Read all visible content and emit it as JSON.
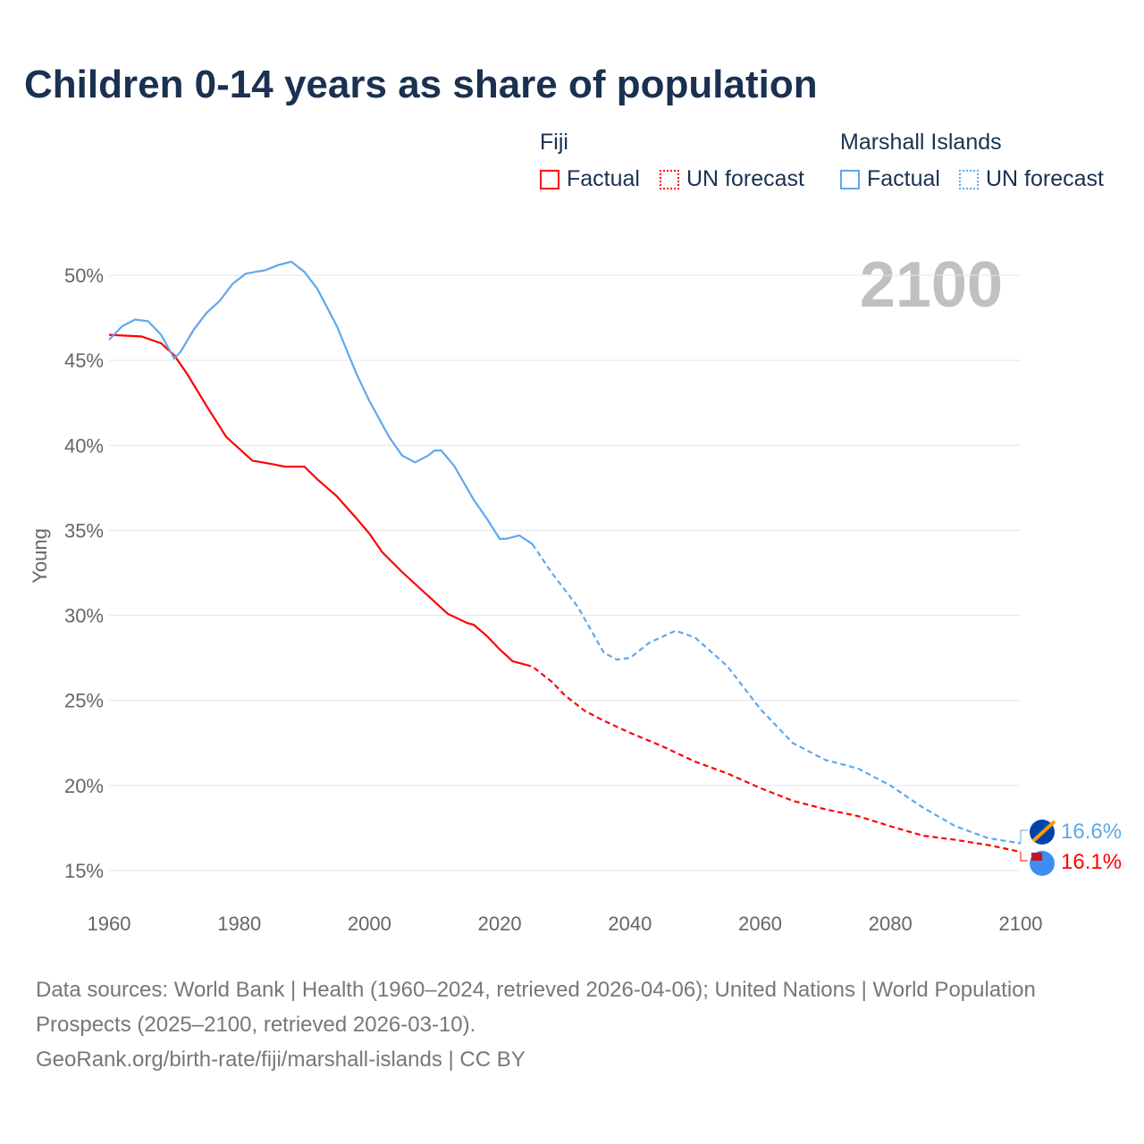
{
  "title": "Children 0-14 years as share of population",
  "legend": {
    "groups": [
      {
        "name": "Fiji",
        "color": "#ff0000",
        "factual": "Factual",
        "forecast": "UN forecast"
      },
      {
        "name": "Marshall Islands",
        "color": "#5fa8ec",
        "factual": "Factual",
        "forecast": "UN forecast"
      }
    ]
  },
  "year_label": "2100",
  "footer": {
    "sources": "Data sources: World Bank | Health (1960–2024, retrieved 2026-04-06); United Nations | World Population Prospects (2025–2100, retrieved 2026-03-10).",
    "link": "GeoRank.org/birth-rate/fiji/marshall-islands | CC BY"
  },
  "chart_data": {
    "type": "line",
    "title": "Children 0-14 years as share of population",
    "xlabel": "",
    "ylabel": "Young",
    "xlim": [
      1960,
      2100
    ],
    "ylim": [
      15,
      50
    ],
    "xticks": [
      "1960",
      "1980",
      "2000",
      "2020",
      "2040",
      "2060",
      "2080",
      "2100"
    ],
    "yticks": [
      "15%",
      "20%",
      "25%",
      "30%",
      "35%",
      "40%",
      "45%",
      "50%"
    ],
    "grid": true,
    "legend_placement": "top-right",
    "series": [
      {
        "name": "Fiji",
        "color": "#ff0000",
        "end_label": "16.1%",
        "factual": {
          "x": [
            1960,
            1965,
            1968,
            1970,
            1972,
            1975,
            1978,
            1980,
            1982,
            1985,
            1987,
            1990,
            1992,
            1995,
            1998,
            2000,
            2002,
            2005,
            2008,
            2010,
            2012,
            2015,
            2016,
            2018,
            2020,
            2022,
            2024
          ],
          "y": [
            46.5,
            46.4,
            46.0,
            45.3,
            44.2,
            42.3,
            40.5,
            39.8,
            39.1,
            38.9,
            38.75,
            38.75,
            38.0,
            37.0,
            35.7,
            34.8,
            33.7,
            32.55,
            31.5,
            30.8,
            30.1,
            29.55,
            29.45,
            28.8,
            28.0,
            27.3,
            27.1
          ]
        },
        "forecast": {
          "x": [
            2024,
            2025,
            2028,
            2030,
            2033,
            2036,
            2040,
            2045,
            2050,
            2055,
            2060,
            2065,
            2070,
            2075,
            2080,
            2085,
            2090,
            2095,
            2100
          ],
          "y": [
            27.1,
            27.0,
            26.1,
            25.3,
            24.4,
            23.8,
            23.1,
            22.3,
            21.4,
            20.7,
            19.85,
            19.1,
            18.6,
            18.2,
            17.6,
            17.05,
            16.8,
            16.5,
            16.1
          ]
        }
      },
      {
        "name": "Marshall Islands",
        "color": "#5fa8ec",
        "end_label": "16.6%",
        "factual": {
          "x": [
            1960,
            1962,
            1964,
            1966,
            1968,
            1970,
            1971,
            1973,
            1975,
            1977,
            1979,
            1981,
            1984,
            1986,
            1988,
            1990,
            1992,
            1995,
            1998,
            2000,
            2003,
            2005,
            2007,
            2009,
            2010,
            2011,
            2013,
            2016,
            2018,
            2020,
            2021,
            2023,
            2025
          ],
          "y": [
            46.2,
            47.0,
            47.4,
            47.3,
            46.5,
            45.1,
            45.5,
            46.8,
            47.8,
            48.5,
            49.5,
            50.1,
            50.3,
            50.6,
            50.8,
            50.2,
            49.2,
            47.0,
            44.2,
            42.6,
            40.5,
            39.4,
            39.0,
            39.4,
            39.7,
            39.7,
            38.8,
            36.8,
            35.7,
            34.5,
            34.5,
            34.7,
            34.2
          ]
        },
        "forecast": {
          "x": [
            2025,
            2028,
            2032,
            2036,
            2038,
            2040,
            2043,
            2047,
            2050,
            2055,
            2060,
            2065,
            2070,
            2075,
            2080,
            2085,
            2090,
            2095,
            2100
          ],
          "y": [
            34.2,
            32.5,
            30.5,
            27.8,
            27.4,
            27.5,
            28.4,
            29.1,
            28.7,
            27.0,
            24.5,
            22.5,
            21.5,
            21.0,
            20.0,
            18.7,
            17.6,
            16.9,
            16.6
          ]
        }
      }
    ]
  }
}
